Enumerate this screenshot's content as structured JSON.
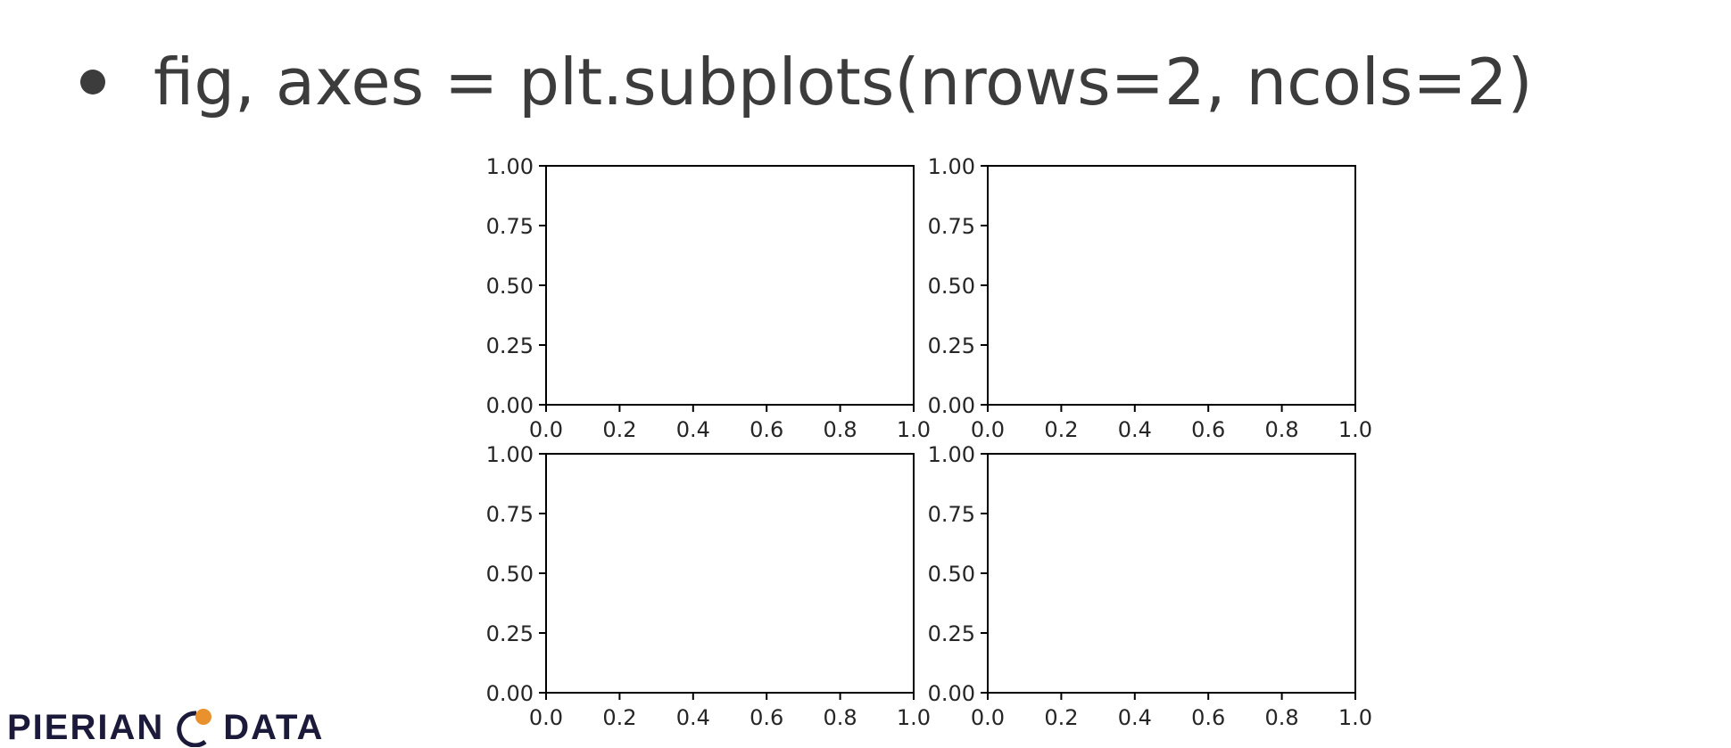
{
  "slide": {
    "bullet_text": "fig, axes = plt.subplots(nrows=2, ncols=2)"
  },
  "logo": {
    "left_text": "PIERIAN",
    "right_text": "DATA",
    "mark_colors": {
      "ring": "#1c1a3a",
      "dot": "#e8912d"
    }
  },
  "chart_data": [
    {
      "type": "scatter",
      "position": "top-left",
      "series": [],
      "xlim": [
        0.0,
        1.0
      ],
      "ylim": [
        0.0,
        1.0
      ],
      "xticks": [
        "0.0",
        "0.2",
        "0.4",
        "0.6",
        "0.8",
        "1.0"
      ],
      "yticks": [
        "0.00",
        "0.25",
        "0.50",
        "0.75",
        "1.00"
      ]
    },
    {
      "type": "scatter",
      "position": "top-right",
      "series": [],
      "xlim": [
        0.0,
        1.0
      ],
      "ylim": [
        0.0,
        1.0
      ],
      "xticks": [
        "0.0",
        "0.2",
        "0.4",
        "0.6",
        "0.8",
        "1.0"
      ],
      "yticks": [
        "0.00",
        "0.25",
        "0.50",
        "0.75",
        "1.00"
      ]
    },
    {
      "type": "scatter",
      "position": "bottom-left",
      "series": [],
      "xlim": [
        0.0,
        1.0
      ],
      "ylim": [
        0.0,
        1.0
      ],
      "xticks": [
        "0.0",
        "0.2",
        "0.4",
        "0.6",
        "0.8",
        "1.0"
      ],
      "yticks": [
        "0.00",
        "0.25",
        "0.50",
        "0.75",
        "1.00"
      ]
    },
    {
      "type": "scatter",
      "position": "bottom-right",
      "series": [],
      "xlim": [
        0.0,
        1.0
      ],
      "ylim": [
        0.0,
        1.0
      ],
      "xticks": [
        "0.0",
        "0.2",
        "0.4",
        "0.6",
        "0.8",
        "1.0"
      ],
      "yticks": [
        "0.00",
        "0.25",
        "0.50",
        "0.75",
        "1.00"
      ]
    }
  ]
}
